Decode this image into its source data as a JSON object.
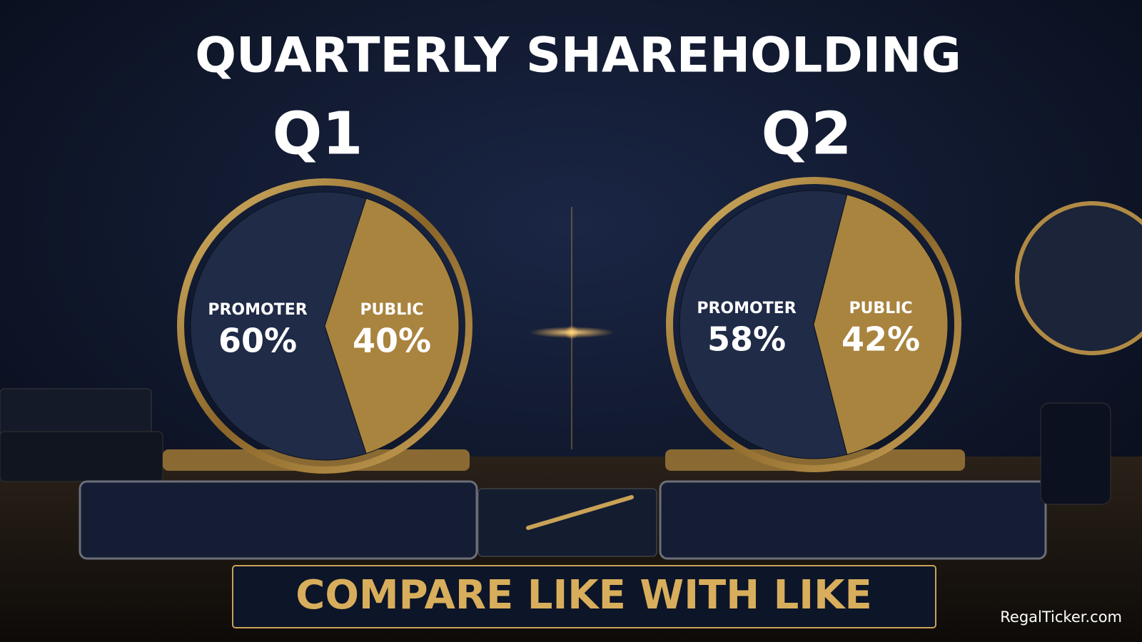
{
  "title": "QUARTERLY SHAREHOLDING",
  "chart_data": [
    {
      "type": "pie",
      "title": "Q1",
      "categories": [
        "PROMOTER",
        "PUBLIC"
      ],
      "values": [
        60,
        40
      ],
      "value_labels": [
        "60%",
        "40%"
      ],
      "colors": [
        "#1f2b47",
        "#a9843f"
      ]
    },
    {
      "type": "pie",
      "title": "Q2",
      "categories": [
        "PROMOTER",
        "PUBLIC"
      ],
      "values": [
        58,
        42
      ],
      "value_labels": [
        "58%",
        "42%"
      ],
      "colors": [
        "#1f2b47",
        "#a9843f"
      ]
    }
  ],
  "banner": "COMPARE LIKE WITH LIKE",
  "watermark": "RegalTicker.com"
}
